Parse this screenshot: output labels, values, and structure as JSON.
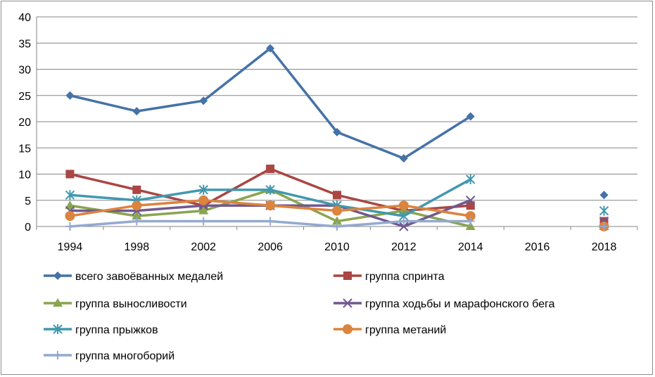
{
  "chart_data": {
    "type": "line",
    "title": "",
    "xlabel": "",
    "ylabel": "",
    "categories": [
      "1994",
      "1998",
      "2002",
      "2006",
      "2010",
      "2012",
      "2014",
      "2016",
      "2018"
    ],
    "ylim": [
      0,
      40
    ],
    "yticks": [
      0,
      5,
      10,
      15,
      20,
      25,
      30,
      35,
      40
    ],
    "grid": "horizontal",
    "legend_position": "bottom",
    "series": [
      {
        "name": "всего завоёванных медалей",
        "color": "#4572a7",
        "marker": "diamond",
        "values": [
          25,
          22,
          24,
          34,
          18,
          13,
          21,
          null,
          6
        ]
      },
      {
        "name": "группа спринта",
        "color": "#aa4643",
        "marker": "square",
        "values": [
          10,
          7,
          4,
          11,
          6,
          3,
          4,
          null,
          1
        ]
      },
      {
        "name": "группа выносливости",
        "color": "#89a54e",
        "marker": "triangle",
        "values": [
          4,
          2,
          3,
          7,
          1,
          3,
          0,
          null,
          0
        ]
      },
      {
        "name": "группа ходьбы и марафонского бега",
        "color": "#71588f",
        "marker": "x",
        "values": [
          3,
          3,
          4,
          4,
          4,
          0,
          5,
          null,
          1
        ]
      },
      {
        "name": "группа прыжков",
        "color": "#4198af",
        "marker": "asterisk",
        "values": [
          6,
          5,
          7,
          7,
          4,
          2,
          9,
          null,
          3
        ]
      },
      {
        "name": "группа метаний",
        "color": "#db843d",
        "marker": "circle",
        "values": [
          2,
          4,
          5,
          4,
          3,
          4,
          2,
          null,
          0
        ]
      },
      {
        "name": "группа многоборий",
        "color": "#93a9cf",
        "marker": "plus",
        "values": [
          0,
          1,
          1,
          1,
          0,
          1,
          1,
          null,
          0
        ]
      }
    ]
  }
}
